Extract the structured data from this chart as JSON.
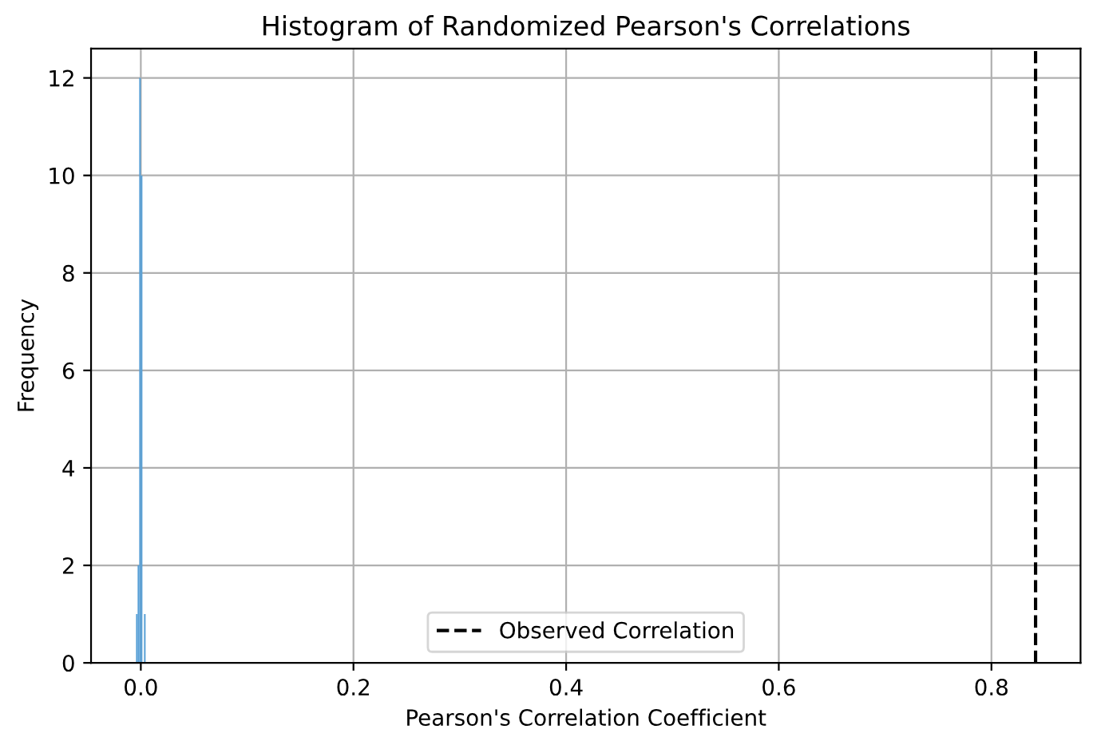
{
  "chart_data": {
    "type": "histogram",
    "title": "Histogram of Randomized Pearson's Correlations",
    "xlabel": "Pearson's Correlation Coefficient",
    "ylabel": "Frequency",
    "bins": [
      -0.0045,
      -0.003,
      -0.0015,
      0,
      0.0015,
      0.003,
      0.0045
    ],
    "values": [
      1,
      2,
      12,
      10,
      0,
      1
    ],
    "color": "#569fd6",
    "xlim": [
      -0.0468,
      0.8838
    ],
    "xticks": [
      {
        "value": 0,
        "label": "0.0"
      },
      0.2,
      0.4,
      0.6,
      0.8
    ],
    "ylim": [
      0,
      12.6
    ],
    "yticks": [
      0,
      2,
      4,
      6,
      8,
      10,
      12
    ],
    "ref_lines": [
      {
        "axis": "x",
        "value": 0.8415,
        "label": "Observed Correlation",
        "color": "#000000",
        "line_style": "dashed"
      }
    ],
    "grid": true,
    "legend": "bottom"
  }
}
